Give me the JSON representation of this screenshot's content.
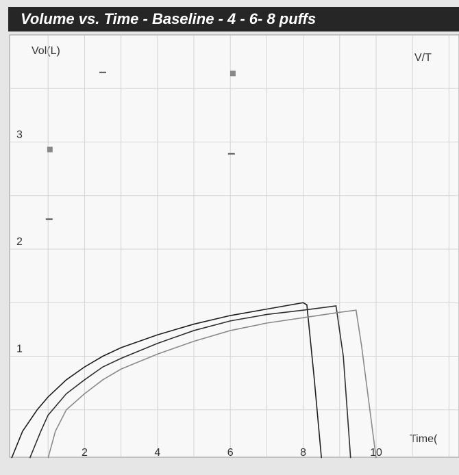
{
  "chart_data": {
    "type": "line",
    "title": "Volume vs. Time - Baseline - 4 - 6- 8 puffs",
    "y_label": "Vol(L)",
    "x_label": "Time(",
    "corner_label": "V/T",
    "xlim": [
      0,
      12.3
    ],
    "ylim": [
      0,
      4
    ],
    "xticks": [
      2,
      4,
      6,
      8,
      10
    ],
    "yticks": [
      1,
      2,
      3
    ],
    "xgrid": [
      1,
      2,
      3,
      4,
      5,
      6,
      7,
      8,
      9,
      10,
      11,
      12
    ],
    "ygrid": [
      0.5,
      1,
      1.5,
      2,
      2.5,
      3,
      3.5
    ],
    "grid": true,
    "series": [
      {
        "color": "#1e1e1e",
        "x": [
          0,
          0.3,
          0.7,
          1,
          1.5,
          2,
          2.5,
          3,
          4,
          5,
          6,
          7,
          8,
          8.1,
          8.3,
          8.5
        ],
        "values": [
          0.05,
          0.3,
          0.5,
          0.62,
          0.78,
          0.9,
          1.0,
          1.08,
          1.2,
          1.3,
          1.38,
          1.44,
          1.5,
          1.48,
          0.8,
          0.05
        ]
      },
      {
        "color": "#2e2e2e",
        "x": [
          0.5,
          0.8,
          1,
          1.5,
          2,
          2.5,
          3,
          4,
          5,
          6,
          7,
          8,
          8.9,
          9.1,
          9.3
        ],
        "values": [
          0.05,
          0.3,
          0.45,
          0.65,
          0.78,
          0.9,
          0.98,
          1.12,
          1.24,
          1.33,
          1.39,
          1.43,
          1.47,
          1.0,
          0.05
        ]
      },
      {
        "color": "#8a8a8a",
        "x": [
          1,
          1.2,
          1.5,
          2,
          2.5,
          3,
          4,
          5,
          6,
          7,
          8,
          9,
          9.45,
          9.6,
          10
        ],
        "values": [
          0.05,
          0.3,
          0.5,
          0.65,
          0.78,
          0.88,
          1.02,
          1.14,
          1.24,
          1.31,
          1.36,
          1.41,
          1.43,
          1.1,
          0.05
        ]
      }
    ],
    "marker_points": [
      {
        "x": 1.05,
        "y": 2.93,
        "shape": "square"
      },
      {
        "x": 6.07,
        "y": 3.64,
        "shape": "square"
      },
      {
        "x": 1.03,
        "y": 2.28,
        "shape": "dash"
      },
      {
        "x": 6.03,
        "y": 2.89,
        "shape": "dash"
      },
      {
        "x": 2.5,
        "y": 3.65,
        "shape": "dash"
      }
    ]
  }
}
